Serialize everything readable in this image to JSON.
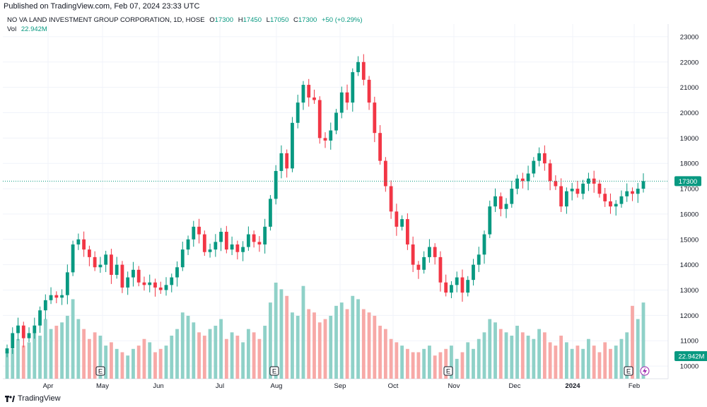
{
  "header": {
    "published": "Published on TradingView.com, Feb 07, 2024 23:33 UTC",
    "symbol": "NO VA LAND INVESTMENT GROUP CORPORATION, 1D, HOSE",
    "o_label": "O",
    "o_value": "17300",
    "h_label": "H",
    "h_value": "17450",
    "l_label": "L",
    "l_value": "17050",
    "c_label": "C",
    "c_value": "17300",
    "change": "+50 (+0.29%)",
    "vol_label": "Vol",
    "vol_value": "22.942M"
  },
  "footer": {
    "brand": "TradingView"
  },
  "colors": {
    "up": "#089981",
    "down": "#f23645",
    "vol_up": "#8fd1c8",
    "vol_down": "#f7a9a7"
  },
  "chart_data": {
    "type": "candlestick",
    "title": "NO VA LAND INVESTMENT GROUP CORPORATION, 1D, HOSE",
    "ylim": [
      9500,
      23500
    ],
    "y_ticks": [
      10000,
      11000,
      12000,
      13000,
      14000,
      15000,
      16000,
      17000,
      18000,
      19000,
      20000,
      21000,
      22000,
      23000
    ],
    "x_ticks": [
      "Apr",
      "May",
      "Jun",
      "Jul",
      "Aug",
      "Sep",
      "Oct",
      "Nov",
      "Dec",
      "2024",
      "Feb"
    ],
    "last_price_label": "17300",
    "volume_label": "22.942M",
    "event_markers": [
      "E",
      "E",
      "E",
      "E"
    ],
    "close": [
      10700,
      11300,
      11600,
      11100,
      11300,
      11600,
      12200,
      12600,
      12800,
      12700,
      12800,
      13700,
      14800,
      15000,
      14600,
      14300,
      13900,
      14000,
      14400,
      13600,
      14000,
      13100,
      13500,
      13800,
      13300,
      13200,
      13300,
      13100,
      13000,
      13200,
      13500,
      13900,
      14600,
      15000,
      15500,
      15200,
      14500,
      14600,
      14900,
      15300,
      14600,
      14800,
      14500,
      14700,
      15200,
      14900,
      14800,
      15500,
      16600,
      17700,
      18400,
      17800,
      19600,
      20400,
      21100,
      20600,
      20500,
      19000,
      18900,
      19300,
      20000,
      20800,
      20400,
      21600,
      22000,
      21300,
      20400,
      19200,
      18100,
      17100,
      16100,
      15500,
      15800,
      14800,
      14000,
      13800,
      14300,
      14700,
      14300,
      13300,
      12900,
      13200,
      13500,
      12900,
      13400,
      14000,
      14400,
      15200,
      16300,
      16700,
      16200,
      16400,
      17000,
      17400,
      17300,
      17600,
      18100,
      18400,
      18000,
      17300,
      17100,
      16300,
      16900,
      17000,
      16800,
      17200,
      17400,
      17200,
      16800,
      16500,
      16300,
      16400,
      16700,
      16900,
      16800,
      17000,
      17300
    ],
    "volume_m": [
      8,
      9,
      12,
      10,
      11,
      14,
      13,
      18,
      15,
      16,
      17,
      19,
      24,
      18,
      15,
      12,
      14,
      13,
      10,
      11,
      9,
      8,
      7,
      9,
      10,
      12,
      11,
      8,
      9,
      10,
      13,
      15,
      20,
      19,
      17,
      14,
      13,
      15,
      16,
      18,
      12,
      14,
      13,
      11,
      15,
      14,
      12,
      16,
      23,
      29,
      27,
      25,
      20,
      19,
      28,
      21,
      20,
      17,
      18,
      19,
      22,
      23,
      21,
      25,
      24,
      21,
      20,
      19,
      16,
      15,
      12,
      11,
      10,
      9,
      8,
      8,
      9,
      10,
      7,
      8,
      9,
      10,
      6,
      8,
      11,
      9,
      12,
      14,
      18,
      17,
      15,
      14,
      13,
      16,
      14,
      13,
      12,
      15,
      14,
      11,
      10,
      13,
      11,
      9,
      10,
      9,
      12,
      10,
      8,
      11,
      9,
      10,
      12,
      14,
      22,
      18,
      23
    ]
  }
}
